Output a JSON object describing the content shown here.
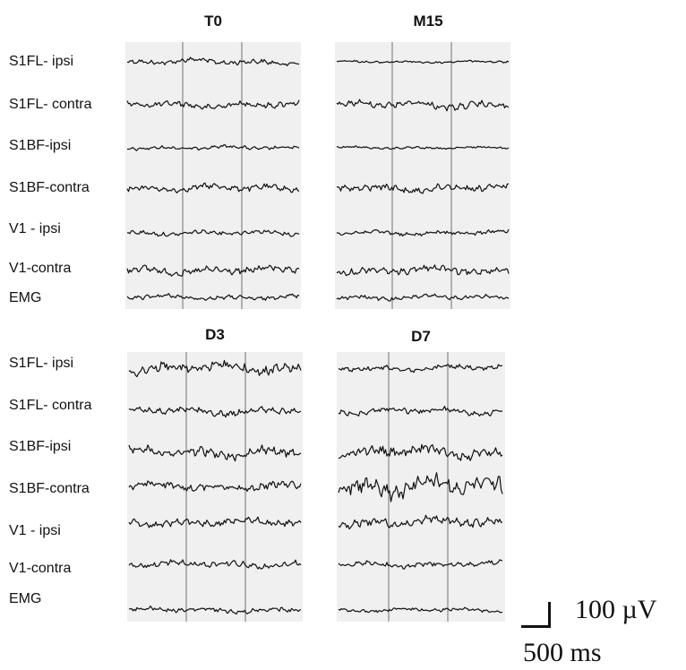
{
  "panels": [
    {
      "title": "T0"
    },
    {
      "title": "M15"
    },
    {
      "title": "D3"
    },
    {
      "title": "D7"
    }
  ],
  "rows": [
    "S1FL- ipsi",
    "S1FL- contra",
    "S1BF-ipsi",
    "S1BF-contra",
    "V1 - ipsi",
    "V1-contra",
    "EMG"
  ],
  "scale": {
    "voltage": "100 µV",
    "time": "500 ms"
  },
  "colors": {
    "trace": "#111111",
    "marker": "#9a9a9a",
    "panel_bg": "#f0f0f0"
  },
  "chart_data": [
    {
      "type": "line",
      "title": "T0",
      "series": [
        {
          "name": "S1FL- ipsi",
          "amplitude": 0.3
        },
        {
          "name": "S1FL- contra",
          "amplitude": 0.35
        },
        {
          "name": "S1BF-ipsi",
          "amplitude": 0.2
        },
        {
          "name": "S1BF-contra",
          "amplitude": 0.35
        },
        {
          "name": "V1 - ipsi",
          "amplitude": 0.25
        },
        {
          "name": "V1-contra",
          "amplitude": 0.4
        },
        {
          "name": "EMG",
          "amplitude": 0.25
        }
      ]
    },
    {
      "type": "line",
      "title": "M15",
      "series": [
        {
          "name": "S1FL- ipsi",
          "amplitude": 0.12
        },
        {
          "name": "S1FL- contra",
          "amplitude": 0.4
        },
        {
          "name": "S1BF-ipsi",
          "amplitude": 0.12
        },
        {
          "name": "S1BF-contra",
          "amplitude": 0.4
        },
        {
          "name": "V1 - ipsi",
          "amplitude": 0.25
        },
        {
          "name": "V1-contra",
          "amplitude": 0.4
        },
        {
          "name": "EMG",
          "amplitude": 0.25
        }
      ]
    },
    {
      "type": "line",
      "title": "D3",
      "series": [
        {
          "name": "S1FL- ipsi",
          "amplitude": 0.6
        },
        {
          "name": "S1FL- contra",
          "amplitude": 0.4
        },
        {
          "name": "S1BF-ipsi",
          "amplitude": 0.55
        },
        {
          "name": "S1BF-contra",
          "amplitude": 0.4
        },
        {
          "name": "V1 - ipsi",
          "amplitude": 0.4
        },
        {
          "name": "V1-contra",
          "amplitude": 0.35
        },
        {
          "name": "EMG",
          "amplitude": 0.25
        }
      ]
    },
    {
      "type": "line",
      "title": "D7",
      "series": [
        {
          "name": "S1FL- ipsi",
          "amplitude": 0.3
        },
        {
          "name": "S1FL- contra",
          "amplitude": 0.35
        },
        {
          "name": "S1BF-ipsi",
          "amplitude": 0.6
        },
        {
          "name": "S1BF-contra",
          "amplitude": 1.0
        },
        {
          "name": "V1 - ipsi",
          "amplitude": 0.5
        },
        {
          "name": "V1-contra",
          "amplitude": 0.3
        },
        {
          "name": "EMG",
          "amplitude": 0.2
        }
      ]
    }
  ]
}
